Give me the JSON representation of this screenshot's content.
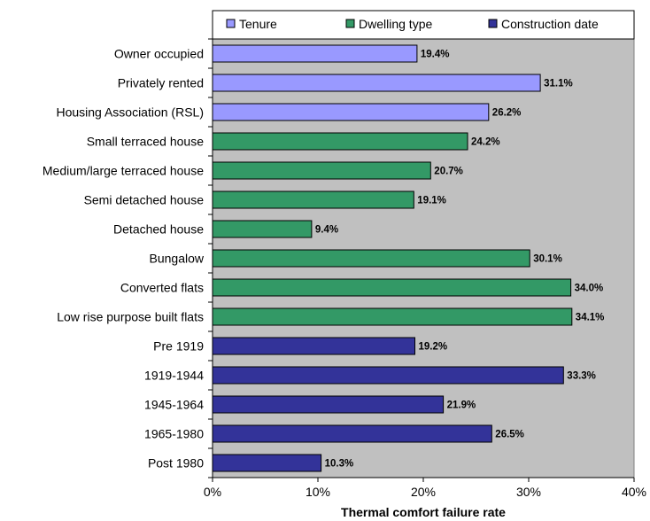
{
  "chart_data": {
    "type": "bar",
    "orientation": "horizontal",
    "title": "",
    "xlabel": "Thermal comfort failure rate",
    "ylabel": "",
    "xlim": [
      0,
      40
    ],
    "x_ticks": [
      "0%",
      "10%",
      "20%",
      "30%",
      "40%"
    ],
    "grid": false,
    "legend_position": "top",
    "series": [
      {
        "name": "Tenure",
        "color": "#9999ff"
      },
      {
        "name": "Dwelling type",
        "color": "#339966"
      },
      {
        "name": "Construction date",
        "color": "#333399"
      }
    ],
    "categories": [
      {
        "label": "Owner occupied",
        "value": 19.4,
        "value_label": "19.4%",
        "series": 0
      },
      {
        "label": "Privately rented",
        "value": 31.1,
        "value_label": "31.1%",
        "series": 0
      },
      {
        "label": "Housing Association (RSL)",
        "value": 26.2,
        "value_label": "26.2%",
        "series": 0
      },
      {
        "label": "Small terraced house",
        "value": 24.2,
        "value_label": "24.2%",
        "series": 1
      },
      {
        "label": "Medium/large terraced house",
        "value": 20.7,
        "value_label": "20.7%",
        "series": 1
      },
      {
        "label": "Semi detached house",
        "value": 19.1,
        "value_label": "19.1%",
        "series": 1
      },
      {
        "label": "Detached house",
        "value": 9.4,
        "value_label": "9.4%",
        "series": 1
      },
      {
        "label": "Bungalow",
        "value": 30.1,
        "value_label": "30.1%",
        "series": 1
      },
      {
        "label": "Converted flats",
        "value": 34.0,
        "value_label": "34.0%",
        "series": 1
      },
      {
        "label": "Low rise purpose built flats",
        "value": 34.1,
        "value_label": "34.1%",
        "series": 1
      },
      {
        "label": "Pre 1919",
        "value": 19.2,
        "value_label": "19.2%",
        "series": 2
      },
      {
        "label": "1919-1944",
        "value": 33.3,
        "value_label": "33.3%",
        "series": 2
      },
      {
        "label": "1945-1964",
        "value": 21.9,
        "value_label": "21.9%",
        "series": 2
      },
      {
        "label": "1965-1980",
        "value": 26.5,
        "value_label": "26.5%",
        "series": 2
      },
      {
        "label": "Post 1980",
        "value": 10.3,
        "value_label": "10.3%",
        "series": 2
      }
    ],
    "plot_background": "#c0c0c0"
  }
}
